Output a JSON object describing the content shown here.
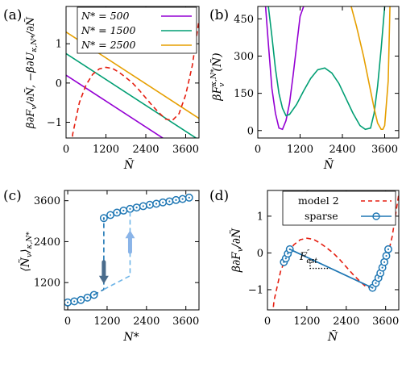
{
  "chart_data": [
    {
      "panel": "(a)",
      "type": "line",
      "xlabel": "Ñ",
      "ylabel": "β∂F_v/∂Ñ, −β∂U_{κ,N*}/∂Ñ",
      "xlim": [
        0,
        4000
      ],
      "ylim": [
        -1.4,
        1.95
      ],
      "xticks": [
        0,
        1200,
        2400,
        3600
      ],
      "xtick_labels": [
        "0",
        "1200",
        "2400",
        "3600"
      ],
      "yticks": [
        -1,
        0,
        1
      ],
      "ytick_labels": [
        "−1",
        "0",
        "1"
      ],
      "legend": {
        "position": "top-center",
        "entries": [
          "N* = 500",
          "N* = 1500",
          "N* = 2500"
        ]
      },
      "series": [
        {
          "name": "N* = 500",
          "style": "solid",
          "color": "#9400d3",
          "x": [
            0,
            4000
          ],
          "y": [
            0.2,
            -2.0
          ]
        },
        {
          "name": "N* = 1500",
          "style": "solid",
          "color": "#009e73",
          "x": [
            0,
            4000
          ],
          "y": [
            0.75,
            -1.45
          ]
        },
        {
          "name": "N* = 2500",
          "style": "solid",
          "color": "#e69f00",
          "x": [
            0,
            4000
          ],
          "y": [
            1.3,
            -0.9
          ]
        },
        {
          "style": "dashed",
          "color": "#e51e10",
          "x": [
            0,
            200,
            400,
            600,
            800,
            1000,
            1200,
            1400,
            1600,
            1800,
            2000,
            2200,
            2400,
            2600,
            2800,
            3000,
            3200,
            3400,
            3600,
            3800,
            4000
          ],
          "y": [
            -3.0,
            -1.3,
            -0.5,
            -0.05,
            0.22,
            0.36,
            0.4,
            0.37,
            0.27,
            0.14,
            0.0,
            -0.18,
            -0.38,
            -0.58,
            -0.76,
            -0.92,
            -0.95,
            -0.78,
            -0.3,
            0.45,
            1.6
          ]
        }
      ]
    },
    {
      "panel": "(b)",
      "type": "line",
      "xlabel": "Ñ",
      "ylabel": "βF_v^{κ,N*}(Ñ)",
      "xlim": [
        0,
        4000
      ],
      "ylim": [
        -30,
        500
      ],
      "xticks": [
        0,
        1200,
        2400,
        3600
      ],
      "xtick_labels": [
        "0",
        "1200",
        "2400",
        "3600"
      ],
      "yticks": [
        0,
        150,
        300,
        450
      ],
      "ytick_labels": [
        "0",
        "150",
        "300",
        "450"
      ],
      "series": [
        {
          "name": "N* = 500",
          "color": "#9400d3",
          "x": [
            220,
            300,
            400,
            500,
            600,
            700,
            800,
            900,
            1000,
            1100,
            1200,
            1300
          ],
          "y": [
            500,
            350,
            170,
            70,
            10,
            5,
            40,
            110,
            220,
            340,
            460,
            500
          ]
        },
        {
          "name": "N* = 1500",
          "color": "#009e73",
          "x": [
            300,
            400,
            500,
            600,
            700,
            800,
            900,
            1100,
            1300,
            1500,
            1700,
            1900,
            2100,
            2300,
            2500,
            2700,
            2900,
            3050,
            3200,
            3300,
            3400,
            3500,
            3600
          ],
          "y": [
            500,
            380,
            250,
            150,
            90,
            60,
            65,
            105,
            160,
            210,
            245,
            252,
            232,
            190,
            130,
            70,
            20,
            5,
            10,
            70,
            180,
            330,
            500
          ]
        },
        {
          "name": "N* = 2500",
          "color": "#e69f00",
          "x": [
            2650,
            2800,
            3000,
            3200,
            3300,
            3400,
            3500,
            3550,
            3600,
            3700,
            3750
          ],
          "y": [
            500,
            420,
            300,
            160,
            90,
            30,
            5,
            5,
            20,
            200,
            500
          ]
        }
      ]
    },
    {
      "panel": "(c)",
      "type": "line",
      "xlabel": "N*",
      "ylabel": "⟨Ñ_v⟩_{κ,N*}",
      "xlim": [
        -100,
        4000
      ],
      "ylim": [
        400,
        3900
      ],
      "xticks": [
        0,
        1200,
        2400,
        3600
      ],
      "xtick_labels": [
        "0",
        "1200",
        "2400",
        "3600"
      ],
      "yticks": [
        1200,
        2400,
        3600
      ],
      "ytick_labels": [
        "1200",
        "2400",
        "3600"
      ],
      "series": [
        {
          "name": "lower branch",
          "style": "solid",
          "markers": "circle",
          "color": "#1f77b4",
          "x": [
            0,
            200,
            400,
            600,
            800
          ],
          "y": [
            620,
            650,
            690,
            760,
            840
          ]
        },
        {
          "name": "upper branch",
          "style": "solid",
          "markers": "circle",
          "color": "#1f77b4",
          "x": [
            1100,
            1300,
            1500,
            1700,
            1900,
            2100,
            2300,
            2500,
            2700,
            2900,
            3100,
            3300,
            3500,
            3700
          ],
          "y": [
            3090,
            3180,
            3250,
            3310,
            3360,
            3400,
            3440,
            3480,
            3510,
            3550,
            3580,
            3620,
            3650,
            3690
          ]
        },
        {
          "name": "jump down",
          "style": "dashed",
          "color": "#1f77b4",
          "x": [
            800,
            1100,
            1100
          ],
          "y": [
            840,
            1000,
            3090
          ]
        },
        {
          "name": "jump up",
          "style": "dashed",
          "color": "#6fb5e8",
          "x": [
            1100,
            1900,
            1900
          ],
          "y": [
            1000,
            1400,
            3360
          ]
        }
      ],
      "annotations": [
        {
          "type": "arrow",
          "direction": "down",
          "x": 1100,
          "y_from": 1800,
          "y_to": 1400,
          "color": "#4a6c8c"
        },
        {
          "type": "arrow",
          "direction": "up",
          "x": 1900,
          "y_from": 2100,
          "y_to": 2500,
          "color": "#8ab4e8"
        }
      ]
    },
    {
      "panel": "(d)",
      "type": "line",
      "xlabel": "Ñ",
      "ylabel": "β∂F_v/∂Ñ",
      "xlim": [
        0,
        4000
      ],
      "ylim": [
        -1.55,
        1.7
      ],
      "xticks": [
        0,
        1200,
        2400,
        3600
      ],
      "xtick_labels": [
        "0",
        "1200",
        "2400",
        "3600"
      ],
      "yticks": [
        -1,
        0,
        1
      ],
      "ytick_labels": [
        "−1",
        "0",
        "1"
      ],
      "legend": {
        "position": "top-center",
        "entries": [
          "model 2",
          "sparse"
        ]
      },
      "series": [
        {
          "name": "model 2",
          "style": "dashed",
          "color": "#e51e10",
          "x": [
            0,
            200,
            400,
            600,
            800,
            1000,
            1200,
            1400,
            1600,
            1800,
            2000,
            2200,
            2400,
            2600,
            2800,
            3000,
            3200,
            3400,
            3600,
            3800,
            4000
          ],
          "y": [
            -3.0,
            -1.3,
            -0.5,
            -0.05,
            0.22,
            0.36,
            0.4,
            0.37,
            0.27,
            0.14,
            0.0,
            -0.18,
            -0.38,
            -0.58,
            -0.76,
            -0.92,
            -0.95,
            -0.78,
            -0.3,
            0.45,
            1.6
          ]
        },
        {
          "name": "sparse",
          "style": "solid",
          "markers": "circle",
          "color": "#1f77b4",
          "x": [
            500,
            560,
            620,
            680,
            3200,
            3300,
            3380,
            3440,
            3500,
            3560,
            3620,
            3680
          ],
          "y": [
            -0.25,
            -0.15,
            -0.02,
            0.1,
            -0.95,
            -0.82,
            -0.68,
            -0.55,
            -0.4,
            -0.25,
            -0.08,
            0.1
          ]
        },
        {
          "name": "sparse",
          "style": "solid",
          "color": "#1f77b4",
          "x": [
            680,
            3200
          ],
          "y": [
            0.1,
            -0.95
          ]
        }
      ],
      "annotations": [
        {
          "type": "slope-triangle",
          "x": [
            1300,
            1300,
            1900
          ],
          "y": [
            -0.18,
            -0.42,
            -0.42
          ],
          "style": "dotted"
        },
        {
          "type": "label",
          "text": "F″_est",
          "x": 1350,
          "y": -0.7
        }
      ]
    }
  ],
  "labels": {
    "panel_a": "(a)",
    "panel_b": "(b)",
    "panel_c": "(c)",
    "panel_d": "(d)",
    "legend_a": [
      "N* = 500",
      "N* = 1500",
      "N* = 2500"
    ],
    "legend_d": [
      "model 2",
      "sparse"
    ],
    "annot_d": "F″est"
  },
  "colors": {
    "purple": "#9400d3",
    "green": "#009e73",
    "orange": "#e69f00",
    "red": "#e51e10",
    "blue": "#1f77b4",
    "light_blue": "#6fb5e8"
  }
}
